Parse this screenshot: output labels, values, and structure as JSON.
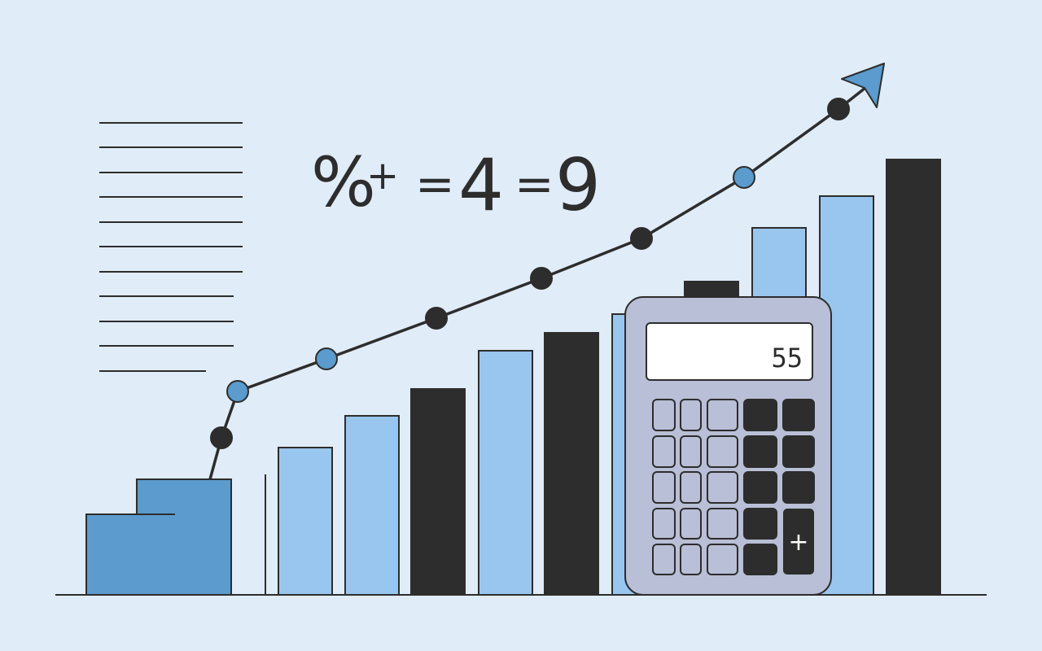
{
  "formula": {
    "symbols": [
      "%",
      "+",
      "=",
      "4",
      "=",
      "9"
    ]
  },
  "calculator": {
    "display_value": "55",
    "plus_key_label": "+"
  },
  "colors": {
    "background": "#e0ecf7",
    "dark": "#2d2d2d",
    "blue": "#5b9bcd",
    "light_blue": "#99c6ee",
    "calculator_body": "#b8bfd6",
    "display": "#ffffff"
  }
}
